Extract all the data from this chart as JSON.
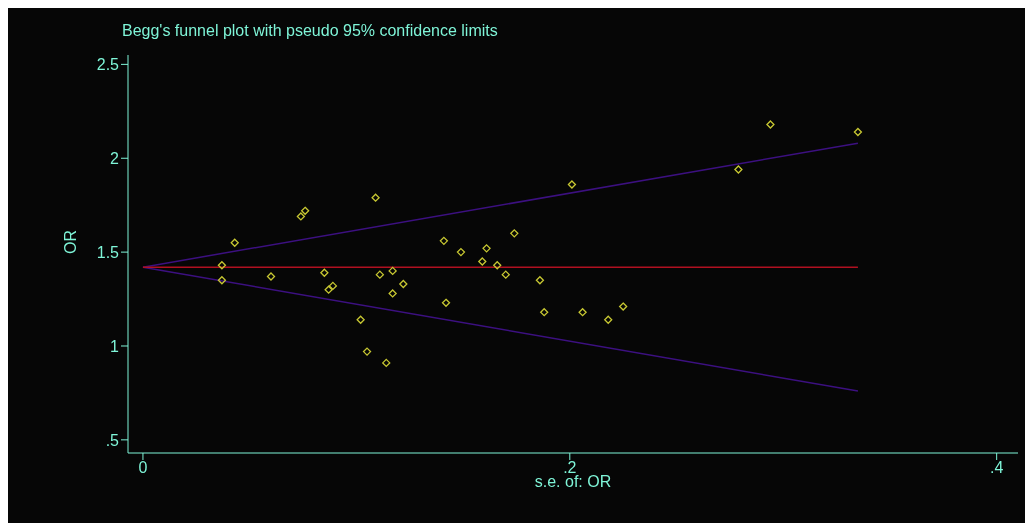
{
  "chart_data": {
    "type": "scatter",
    "title": "Begg's funnel plot with pseudo 95% confidence limits",
    "xlabel": "s.e. of: OR",
    "ylabel": "OR",
    "xlim": [
      -0.007,
      0.41
    ],
    "ylim": [
      0.43,
      2.55
    ],
    "xticks": [
      0,
      {
        "value": 0.2,
        "label": ".2"
      },
      {
        "value": 0.4,
        "label": ".4"
      }
    ],
    "yticks": [
      {
        "value": 0.5,
        "label": ".5"
      },
      1,
      1.5,
      2,
      2.5
    ],
    "grid": false,
    "legend": false,
    "marker": "diamond",
    "series": [
      {
        "color": "#c8c832",
        "x": [
          0.109,
          0.076,
          0.074,
          0.043,
          0.037,
          0.037,
          0.06,
          0.085,
          0.087,
          0.089,
          0.111,
          0.117,
          0.122,
          0.117,
          0.102,
          0.105,
          0.114,
          0.201,
          0.174,
          0.141,
          0.149,
          0.161,
          0.159,
          0.166,
          0.17,
          0.186,
          0.142,
          0.188,
          0.206,
          0.218,
          0.225,
          0.294,
          0.335,
          0.279
        ],
        "values": [
          1.79,
          1.72,
          1.69,
          1.55,
          1.43,
          1.35,
          1.37,
          1.39,
          1.3,
          1.32,
          1.38,
          1.4,
          1.33,
          1.28,
          1.14,
          0.97,
          0.91,
          1.86,
          1.6,
          1.56,
          1.5,
          1.52,
          1.45,
          1.43,
          1.38,
          1.35,
          1.23,
          1.18,
          1.18,
          1.14,
          1.21,
          2.18,
          2.14,
          1.94
        ]
      },
      {
        "type": "line",
        "color": "#3c1080",
        "marker": "none",
        "x": [
          0,
          0.335
        ],
        "values": [
          1.42,
          2.08
        ]
      },
      {
        "type": "line",
        "color": "#3c1080",
        "marker": "none",
        "x": [
          0,
          0.335
        ],
        "values": [
          1.42,
          0.76
        ]
      },
      {
        "type": "line",
        "color": "#b01020",
        "marker": "none",
        "x": [
          0,
          0.335
        ],
        "values": [
          1.42,
          1.42
        ]
      }
    ]
  }
}
